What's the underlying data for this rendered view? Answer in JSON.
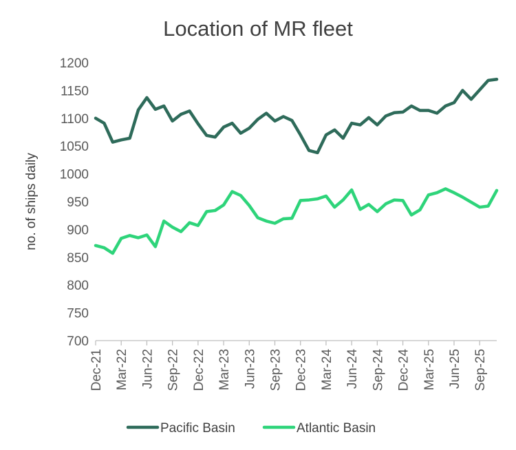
{
  "chart_data": {
    "type": "line",
    "title": "Location of MR fleet",
    "xlabel": "",
    "ylabel": "no. of ships daily",
    "ylim": [
      700,
      1200
    ],
    "yticks": [
      700,
      750,
      800,
      850,
      900,
      950,
      1000,
      1050,
      1100,
      1150,
      1200
    ],
    "x": [
      "Dec-21",
      "Jan-22",
      "Feb-22",
      "Mar-22",
      "Apr-22",
      "May-22",
      "Jun-22",
      "Jul-22",
      "Aug-22",
      "Sep-22",
      "Oct-22",
      "Nov-22",
      "Dec-22",
      "Jan-23",
      "Feb-23",
      "Mar-23",
      "Apr-23",
      "May-23",
      "Jun-23",
      "Jul-23",
      "Aug-23",
      "Sep-23",
      "Oct-23",
      "Nov-23",
      "Dec-23",
      "Jan-24",
      "Feb-24",
      "Mar-24",
      "Apr-24",
      "May-24",
      "Jun-24",
      "Jul-24",
      "Aug-24",
      "Sep-24",
      "Oct-24",
      "Nov-24",
      "Dec-24",
      "Jan-25",
      "Feb-25",
      "Mar-25",
      "Apr-25",
      "May-25",
      "Jun-25",
      "Jul-25",
      "Aug-25",
      "Sep-25",
      "Oct-25",
      "Nov-25"
    ],
    "x_tick_labels": [
      "Dec-21",
      "Mar-22",
      "Jun-22",
      "Sep-22",
      "Dec-22",
      "Mar-23",
      "Jun-23",
      "Sep-23",
      "Dec-23",
      "Mar-24",
      "Jun-24",
      "Sep-24",
      "Dec-24",
      "Mar-25",
      "Jun-25",
      "Sep-25"
    ],
    "grid": {
      "horizontal": false,
      "vertical": false
    },
    "legend_position": "bottom",
    "series": [
      {
        "name": "Pacific Basin",
        "color": "#2E6B5A",
        "values": [
          1100,
          1091,
          1057,
          1061,
          1064,
          1115,
          1137,
          1116,
          1122,
          1095,
          1107,
          1113,
          1090,
          1069,
          1066,
          1084,
          1091,
          1073,
          1082,
          1098,
          1109,
          1095,
          1103,
          1096,
          1070,
          1042,
          1038,
          1070,
          1079,
          1064,
          1091,
          1088,
          1101,
          1088,
          1104,
          1110,
          1111,
          1122,
          1114,
          1114,
          1109,
          1122,
          1128,
          1150,
          1134,
          1151,
          1168,
          1170
        ]
      },
      {
        "name": "Atlantic Basin",
        "color": "#2ED47A",
        "values": [
          871,
          867,
          857,
          884,
          889,
          885,
          890,
          869,
          915,
          904,
          896,
          912,
          907,
          932,
          934,
          944,
          968,
          961,
          943,
          921,
          915,
          911,
          919,
          920,
          952,
          953,
          955,
          960,
          940,
          953,
          971,
          936,
          945,
          932,
          946,
          953,
          952,
          926,
          935,
          962,
          966,
          973,
          966,
          958,
          949,
          940,
          942,
          970
        ]
      }
    ]
  }
}
